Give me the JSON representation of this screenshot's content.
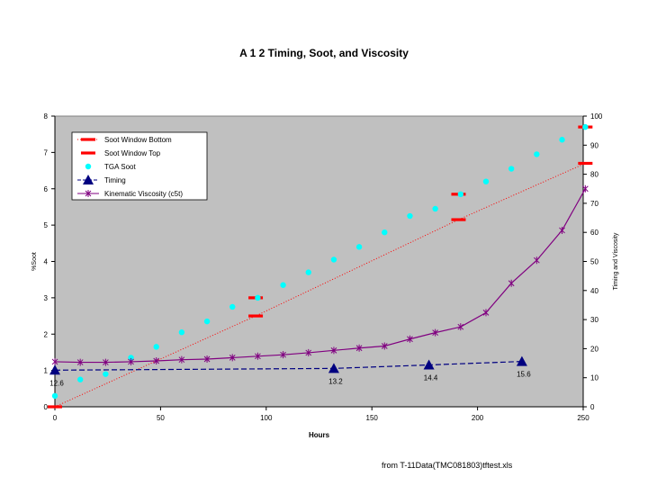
{
  "chart_data": {
    "type": "line",
    "title": "A 1 2 Timing, Soot, and Viscosity",
    "xlabel": "Hours",
    "ylabel_left": "%Soot",
    "ylabel_right": "Timing and Viscosity",
    "xlim": [
      0,
      250
    ],
    "ylim_left": [
      0,
      8
    ],
    "ylim_right": [
      0,
      100
    ],
    "x_ticks": [
      "0",
      "50",
      "100",
      "150",
      "200",
      "250"
    ],
    "y_left_ticks": [
      "0",
      "1",
      "2",
      "3",
      "4",
      "5",
      "6",
      "7",
      "8"
    ],
    "y_right_ticks": [
      "0",
      "10",
      "20",
      "30",
      "40",
      "50",
      "60",
      "70",
      "80",
      "90",
      "100"
    ],
    "plot_background": "#c0c0c0",
    "grid": false,
    "legend_position": "top-left",
    "series": [
      {
        "name": "Soot Window Bottom",
        "axis": "left",
        "style": "marker-dotted-line",
        "color": "#ff0000",
        "x": [
          0,
          95,
          191,
          251
        ],
        "y": [
          0,
          2.5,
          5.15,
          6.7
        ]
      },
      {
        "name": "Soot Window Top",
        "axis": "left",
        "style": "marker",
        "color": "#ff0000",
        "x": [
          95,
          191,
          251
        ],
        "y": [
          3.0,
          5.85,
          7.7
        ]
      },
      {
        "name": "TGA Soot",
        "axis": "left",
        "style": "marker",
        "color": "#00ffff",
        "x": [
          0,
          12,
          24,
          36,
          48,
          60,
          72,
          84,
          96,
          108,
          120,
          132,
          144,
          156,
          168,
          180,
          192,
          204,
          216,
          228,
          240,
          251
        ],
        "y": [
          0.3,
          0.75,
          0.9,
          1.35,
          1.65,
          2.05,
          2.35,
          2.75,
          3.0,
          3.35,
          3.7,
          4.05,
          4.4,
          4.8,
          5.25,
          5.45,
          5.85,
          6.2,
          6.55,
          6.95,
          7.35,
          7.7
        ]
      },
      {
        "name": "Timing",
        "axis": "right",
        "style": "marker-dashed-line",
        "color": "#000080",
        "x": [
          0,
          132,
          177,
          221
        ],
        "y": [
          12.6,
          13.2,
          14.4,
          15.6
        ],
        "labels": [
          "12.6",
          "13.2",
          "14.4",
          "15.6"
        ]
      },
      {
        "name": "Kinematic Viscosity (c5t)",
        "axis": "right",
        "style": "marker-line",
        "color": "#800080",
        "x": [
          0,
          12,
          24,
          36,
          48,
          60,
          72,
          84,
          96,
          108,
          120,
          132,
          144,
          156,
          168,
          180,
          192,
          204,
          216,
          228,
          240,
          251
        ],
        "y": [
          15.5,
          15.3,
          15.3,
          15.5,
          15.8,
          16.2,
          16.4,
          16.9,
          17.4,
          17.9,
          18.6,
          19.4,
          20.2,
          20.9,
          23.3,
          25.5,
          27.5,
          32.4,
          42.5,
          50.4,
          60.7,
          75.0
        ]
      }
    ]
  },
  "footer": {
    "source": "from T-11Data(TMC081803)tftest.xls"
  }
}
